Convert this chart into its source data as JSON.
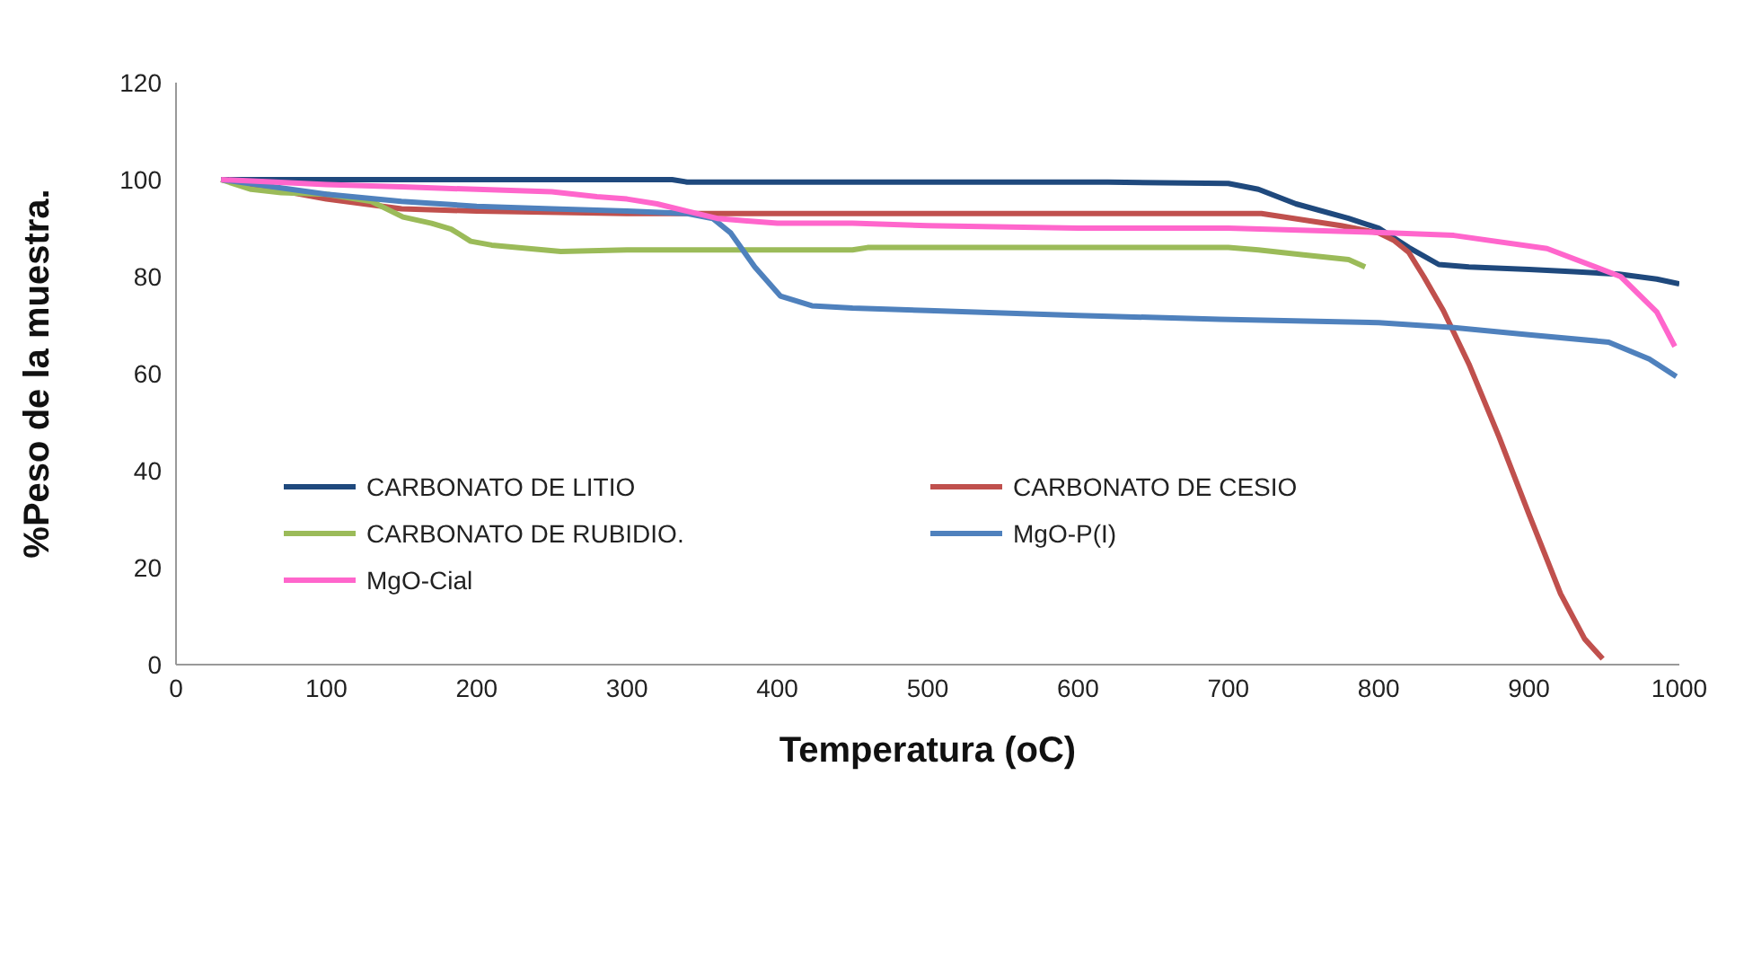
{
  "chart_data": {
    "type": "line",
    "xlabel": "Temperatura (oC)",
    "ylabel": "%Peso de la muestra.",
    "xlim": [
      0,
      1000
    ],
    "xticks": [
      0,
      100,
      200,
      300,
      400,
      500,
      600,
      700,
      800,
      900,
      1000
    ],
    "ylim": [
      0,
      120
    ],
    "yticks": [
      0,
      20,
      40,
      60,
      80,
      100,
      120
    ],
    "grid": false,
    "legend": "left",
    "marker": "none",
    "line_style": "solid",
    "series": [
      {
        "name": "CARBONATO DE LITIO",
        "color": "#1f497d",
        "x": [
          30,
          100,
          200,
          330,
          340,
          620,
          700,
          720,
          745,
          780,
          800,
          820,
          840,
          860,
          900,
          930,
          960,
          985,
          1000
        ],
        "values": [
          100,
          100,
          100,
          100,
          99.5,
          99.5,
          99.2,
          98,
          95,
          92,
          90,
          86,
          82.5,
          82,
          81.5,
          81,
          80.5,
          79.5,
          78.5
        ]
      },
      {
        "name": "CARBONATO DE CESIO",
        "color": "#c0504d",
        "x": [
          30,
          100,
          150,
          200,
          300,
          500,
          700,
          722,
          775,
          800,
          810,
          820,
          830,
          843,
          860,
          880,
          900,
          921,
          937,
          949
        ],
        "values": [
          100,
          96,
          94,
          93.5,
          93,
          93,
          93,
          93,
          90.5,
          89,
          87.5,
          85,
          80,
          73,
          62,
          47,
          31,
          14.6,
          5.3,
          1.2
        ]
      },
      {
        "name": "CARBONATO DE RUBIDIO.",
        "color": "#9bbb59",
        "x": [
          30,
          50,
          70,
          100,
          130,
          151,
          170,
          183,
          196,
          210,
          256,
          300,
          450,
          460,
          700,
          720,
          750,
          780,
          791
        ],
        "values": [
          100,
          98,
          97.3,
          97,
          95.5,
          92.3,
          91,
          89.8,
          87.3,
          86.5,
          85.2,
          85.5,
          85.5,
          86,
          86,
          85.5,
          84.5,
          83.5,
          82
        ]
      },
      {
        "name": "MgO-P(I)",
        "color": "#4f81bd",
        "x": [
          30,
          100,
          150,
          200,
          250,
          300,
          340,
          357,
          369,
          385,
          402,
          423,
          450,
          500,
          600,
          694,
          800,
          850,
          900,
          953,
          980,
          998
        ],
        "values": [
          100,
          97,
          95.5,
          94.5,
          94,
          93.5,
          93,
          92,
          89,
          82,
          76,
          74,
          73.5,
          73,
          72,
          71.2,
          70.5,
          69.5,
          68,
          66.5,
          63,
          59.4
        ]
      },
      {
        "name": "MgO-Cial",
        "color": "#ff66cc",
        "x": [
          30,
          100,
          150,
          200,
          250,
          280,
          300,
          320,
          340,
          360,
          380,
          400,
          450,
          500,
          600,
          700,
          811,
          850,
          912,
          961,
          985,
          997
        ],
        "values": [
          100,
          99,
          98.5,
          98,
          97.5,
          96.5,
          96,
          95,
          93.5,
          92,
          91.5,
          91,
          91,
          90.5,
          90,
          90,
          89,
          88.5,
          85.8,
          80,
          72.7,
          65.6
        ]
      }
    ]
  }
}
